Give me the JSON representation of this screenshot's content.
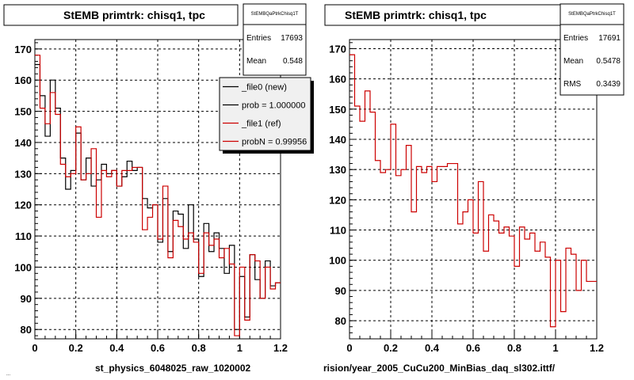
{
  "colors": {
    "new": "#000000",
    "ref": "#cc0000",
    "grid": "#000000",
    "background": "#ffffff",
    "legend_bg": "#f0f0f0"
  },
  "chart_data": [
    {
      "type": "line",
      "title": "StEMB primtrk: chisq1, tpc",
      "xlabel": "st_physics_6048025_raw_1020002",
      "ylabel": "",
      "xlim": [
        0,
        1.2
      ],
      "ylim": [
        77,
        173
      ],
      "grid": true,
      "xticks": [
        "0",
        "0.2",
        "0.4",
        "0.6",
        "0.8",
        "1",
        "1.2"
      ],
      "yticks": [
        "80",
        "90",
        "100",
        "110",
        "120",
        "130",
        "140",
        "150",
        "160",
        "170"
      ],
      "x": [
        0,
        0.025,
        0.05,
        0.075,
        0.1,
        0.125,
        0.15,
        0.175,
        0.2,
        0.225,
        0.25,
        0.275,
        0.3,
        0.325,
        0.35,
        0.375,
        0.4,
        0.425,
        0.45,
        0.475,
        0.5,
        0.525,
        0.55,
        0.575,
        0.6,
        0.625,
        0.65,
        0.675,
        0.7,
        0.725,
        0.75,
        0.775,
        0.8,
        0.825,
        0.85,
        0.875,
        0.9,
        0.925,
        0.95,
        0.975,
        1.0,
        1.025,
        1.05,
        1.075,
        1.1,
        1.125,
        1.15,
        1.175
      ],
      "series": [
        {
          "name": "_file0 (new)",
          "color": "#000000",
          "values": [
            165,
            155,
            142,
            160,
            151,
            135,
            125,
            131,
            143,
            128,
            135,
            126,
            128,
            133,
            130,
            131,
            126,
            129,
            134,
            131,
            132,
            122,
            119,
            120,
            108,
            122,
            105,
            118,
            117,
            106,
            120,
            109,
            97,
            114,
            105,
            111,
            106,
            98,
            107,
            80,
            97,
            84,
            104,
            96,
            90,
            102,
            94,
            95
          ]
        },
        {
          "name": "_file1 (ref)",
          "color": "#cc0000",
          "values": [
            168,
            151,
            146,
            156,
            149,
            133,
            129,
            130,
            145,
            128,
            130,
            138,
            116,
            131,
            129,
            131,
            126,
            131,
            131,
            132,
            132,
            112,
            116,
            120,
            109,
            126,
            103,
            115,
            113,
            109,
            111,
            108,
            98,
            111,
            107,
            109,
            103,
            106,
            101,
            78,
            100,
            83,
            104,
            102,
            90,
            100,
            93,
            95
          ]
        }
      ],
      "stats": {
        "header": "StEMBQaPtrkChisq1T",
        "entries_label": "Entries",
        "entries": "17693",
        "mean_label": "Mean",
        "mean": "0.548"
      },
      "legend": {
        "placement": "top-right",
        "entries": [
          {
            "label": "_file0 (new)",
            "color": "#000000"
          },
          {
            "label": "prob = 1.000000",
            "color": "#000000"
          },
          {
            "label": "_file1 (ref)",
            "color": "#cc0000"
          },
          {
            "label": "probN = 0.99956",
            "color": "#cc0000"
          }
        ]
      }
    },
    {
      "type": "line",
      "title": "StEMB primtrk: chisq1, tpc",
      "xlabel": "rision/year_2005_CuCu200_MinBias_daq_sl302.ittf/",
      "ylabel": "",
      "xlim": [
        0,
        1.2
      ],
      "ylim": [
        74,
        173
      ],
      "grid": true,
      "xticks": [
        "0",
        "0.2",
        "0.4",
        "0.6",
        "0.8",
        "1",
        "1.2"
      ],
      "yticks": [
        "80",
        "90",
        "100",
        "110",
        "120",
        "130",
        "140",
        "150",
        "160",
        "170"
      ],
      "x": [
        0,
        0.025,
        0.05,
        0.075,
        0.1,
        0.125,
        0.15,
        0.175,
        0.2,
        0.225,
        0.25,
        0.275,
        0.3,
        0.325,
        0.35,
        0.375,
        0.4,
        0.425,
        0.45,
        0.475,
        0.5,
        0.525,
        0.55,
        0.575,
        0.6,
        0.625,
        0.65,
        0.675,
        0.7,
        0.725,
        0.75,
        0.775,
        0.8,
        0.825,
        0.85,
        0.875,
        0.9,
        0.925,
        0.95,
        0.975,
        1.0,
        1.025,
        1.05,
        1.075,
        1.1,
        1.125,
        1.15,
        1.175
      ],
      "series": [
        {
          "name": "_file1 (ref)",
          "color": "#cc0000",
          "values": [
            168,
            151,
            146,
            156,
            149,
            133,
            129,
            130,
            145,
            128,
            130,
            138,
            116,
            131,
            129,
            131,
            126,
            131,
            131,
            132,
            132,
            112,
            116,
            120,
            109,
            126,
            103,
            115,
            113,
            109,
            111,
            108,
            98,
            111,
            107,
            109,
            103,
            106,
            101,
            78,
            100,
            83,
            104,
            102,
            90,
            100,
            93,
            93
          ]
        }
      ],
      "stats": {
        "header": "StEMBQaPtrkChisq1T",
        "entries_label": "Entries",
        "entries": "17691",
        "mean_label": "Mean",
        "mean": "0.5478",
        "rms_label": "RMS",
        "rms": "0.3439"
      }
    }
  ],
  "footer_text": "..."
}
